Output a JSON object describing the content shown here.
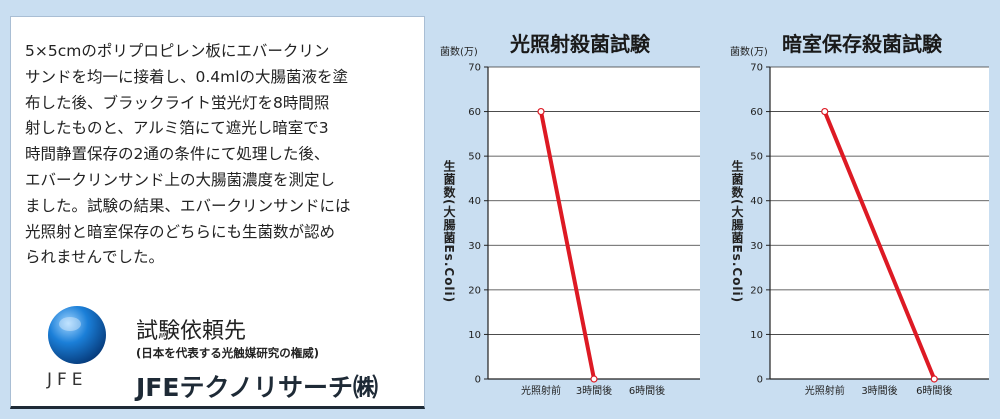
{
  "description": {
    "lines": [
      "5×5cmのポリプロピレン板にエバークリン",
      "サンドを均一に接着し、0.4mlの大腸菌液を塗",
      "布した後、ブラックライト蛍光灯を8時間照",
      "射したものと、アルミ箔にて遮光し暗室で3",
      "時間静置保存の2通の条件にて処理した後、",
      "エバークリンサンド上の大腸菌濃度を測定し",
      "ました。試験の結果、エバークリンサンドには",
      "光照射と暗室保存のどちらにも生菌数が認め",
      "られませんでした。"
    ]
  },
  "company": {
    "label": "試験依頼先",
    "subtitle": "(日本を代表する光触媒研究の権威)",
    "name": "JFEテクノリサーチ㈱",
    "logo_text": "JFE",
    "brand_color": "#0a5fb4"
  },
  "colors": {
    "background": "#c9def1",
    "line": "#dd1a24",
    "axis": "#222222",
    "grid": "#333333"
  },
  "chart_data": [
    {
      "type": "line",
      "title": "光照射殺菌試験",
      "unit_label": "菌数(万)",
      "ylabel": "生菌数(大腸菌Es.Coli)",
      "categories": [
        "光照射前",
        "3時間後",
        "6時間後"
      ],
      "yticks": [
        0,
        10,
        20,
        30,
        40,
        50,
        60,
        70
      ],
      "ylim": [
        0,
        70
      ],
      "grid": true,
      "series": [
        {
          "values": [
            60,
            0,
            null
          ]
        }
      ]
    },
    {
      "type": "line",
      "title": "暗室保存殺菌試験",
      "unit_label": "菌数(万)",
      "ylabel": "生菌数(大腸菌Es.Coli)",
      "categories": [
        "光照射前",
        "3時間後",
        "6時間後"
      ],
      "yticks": [
        0,
        10,
        20,
        30,
        40,
        50,
        60,
        70
      ],
      "ylim": [
        0,
        70
      ],
      "grid": true,
      "series": [
        {
          "values": [
            60,
            null,
            0
          ]
        }
      ]
    }
  ]
}
